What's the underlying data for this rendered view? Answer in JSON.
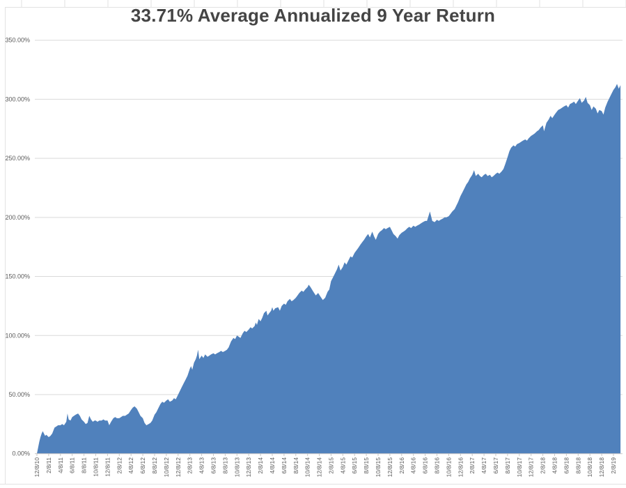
{
  "title": "33.71% Average Annualized 9 Year Return",
  "colors": {
    "area_fill": "#5081BC",
    "gridline": "#D9D9D9",
    "axis_line": "#C6C6C6",
    "tick": "#C6C6C6",
    "sheet_line": "#E2E2E2",
    "axis_text": "#595959",
    "title_text": "#454545",
    "background": "#FFFFFF"
  },
  "chart_data": {
    "type": "area",
    "title": "33.71% Average Annualized 9 Year Return",
    "xlabel": "",
    "ylabel": "",
    "ylim": [
      0,
      350
    ],
    "grid": "horizontal",
    "legend": "none",
    "y_ticks": [
      {
        "value": 0,
        "label": "0.00%"
      },
      {
        "value": 50,
        "label": "50.00%"
      },
      {
        "value": 100,
        "label": "100.00%"
      },
      {
        "value": 150,
        "label": "150.00%"
      },
      {
        "value": 200,
        "label": "200.00%"
      },
      {
        "value": 250,
        "label": "250.00%"
      },
      {
        "value": 300,
        "label": "300.00%"
      },
      {
        "value": 350,
        "label": "350.00%"
      }
    ],
    "x_labels": [
      "12/8/10",
      "2/8/11",
      "4/8/11",
      "6/8/11",
      "8/8/11",
      "10/8/11",
      "12/8/11",
      "2/8/12",
      "4/8/12",
      "6/8/12",
      "8/8/12",
      "10/8/12",
      "12/8/12",
      "2/8/13",
      "4/8/13",
      "6/8/13",
      "8/8/13",
      "10/8/13",
      "12/8/13",
      "2/8/14",
      "4/8/14",
      "6/8/14",
      "8/8/14",
      "10/8/14",
      "12/8/14",
      "2/8/15",
      "4/8/15",
      "6/8/15",
      "8/8/15",
      "10/8/15",
      "12/8/15",
      "2/8/16",
      "4/8/16",
      "6/8/16",
      "8/8/16",
      "10/8/16",
      "12/8/16",
      "2/8/17",
      "4/8/17",
      "6/8/17",
      "8/8/17",
      "10/8/17",
      "12/8/17",
      "2/8/18",
      "4/8/18",
      "6/8/18",
      "8/8/18",
      "10/8/18",
      "12/8/18",
      "2/8/19"
    ],
    "x_label_interval_months": 2,
    "series_note": "cumulative return % vs months since 12/8/10 (values estimated from pixels)",
    "points": [
      [
        0,
        0
      ],
      [
        0.2,
        5
      ],
      [
        0.4,
        10
      ],
      [
        0.6,
        14
      ],
      [
        0.8,
        17
      ],
      [
        1,
        19
      ],
      [
        1.2,
        17
      ],
      [
        1.4,
        15
      ],
      [
        1.6,
        16
      ],
      [
        1.8,
        15
      ],
      [
        2,
        14
      ],
      [
        2.3,
        15
      ],
      [
        2.6,
        17
      ],
      [
        3,
        22
      ],
      [
        3.3,
        23
      ],
      [
        3.6,
        24
      ],
      [
        4,
        24
      ],
      [
        4.3,
        25
      ],
      [
        4.6,
        24
      ],
      [
        5,
        27
      ],
      [
        5.2,
        34
      ],
      [
        5.4,
        29
      ],
      [
        5.7,
        28
      ],
      [
        6,
        31
      ],
      [
        6.3,
        32
      ],
      [
        6.6,
        33
      ],
      [
        7,
        34
      ],
      [
        7.3,
        32
      ],
      [
        7.6,
        29
      ],
      [
        8,
        27
      ],
      [
        8.3,
        25
      ],
      [
        8.6,
        26
      ],
      [
        8.9,
        32
      ],
      [
        9.2,
        29
      ],
      [
        9.5,
        27
      ],
      [
        9.8,
        28
      ],
      [
        10,
        28
      ],
      [
        10.3,
        27
      ],
      [
        10.6,
        28
      ],
      [
        11,
        28
      ],
      [
        11.3,
        29
      ],
      [
        11.6,
        28
      ],
      [
        12,
        28
      ],
      [
        12.3,
        24
      ],
      [
        12.6,
        27
      ],
      [
        13,
        30
      ],
      [
        13.3,
        31
      ],
      [
        13.6,
        30
      ],
      [
        14,
        30
      ],
      [
        14.3,
        31
      ],
      [
        14.6,
        32
      ],
      [
        15,
        32
      ],
      [
        15.3,
        33
      ],
      [
        15.6,
        34
      ],
      [
        16,
        37
      ],
      [
        16.3,
        39
      ],
      [
        16.6,
        40
      ],
      [
        17,
        38
      ],
      [
        17.3,
        35
      ],
      [
        17.6,
        32
      ],
      [
        18,
        30
      ],
      [
        18.3,
        26
      ],
      [
        18.6,
        24
      ],
      [
        19,
        25
      ],
      [
        19.3,
        26
      ],
      [
        19.6,
        28
      ],
      [
        20,
        33
      ],
      [
        20.3,
        35
      ],
      [
        20.6,
        38
      ],
      [
        21,
        42
      ],
      [
        21.3,
        44
      ],
      [
        21.6,
        43
      ],
      [
        22,
        45
      ],
      [
        22.3,
        46
      ],
      [
        22.6,
        44
      ],
      [
        23,
        45
      ],
      [
        23.3,
        47
      ],
      [
        23.6,
        46
      ],
      [
        24,
        50
      ],
      [
        24.3,
        53
      ],
      [
        24.6,
        56
      ],
      [
        25,
        60
      ],
      [
        25.3,
        63
      ],
      [
        25.6,
        66
      ],
      [
        26,
        72
      ],
      [
        26.2,
        74
      ],
      [
        26.4,
        71
      ],
      [
        26.7,
        77
      ],
      [
        27,
        80
      ],
      [
        27.2,
        83
      ],
      [
        27.4,
        88
      ],
      [
        27.6,
        80
      ],
      [
        28,
        83
      ],
      [
        28.3,
        81
      ],
      [
        28.6,
        84
      ],
      [
        29,
        82
      ],
      [
        29.3,
        83
      ],
      [
        29.6,
        84
      ],
      [
        30,
        85
      ],
      [
        30.3,
        84
      ],
      [
        30.6,
        85
      ],
      [
        31,
        86
      ],
      [
        31.3,
        87
      ],
      [
        31.6,
        86
      ],
      [
        32,
        87
      ],
      [
        32.3,
        88
      ],
      [
        32.6,
        90
      ],
      [
        33,
        95
      ],
      [
        33.4,
        98
      ],
      [
        33.7,
        97
      ],
      [
        34,
        100
      ],
      [
        34.3,
        99
      ],
      [
        34.6,
        98
      ],
      [
        35,
        102
      ],
      [
        35.3,
        104
      ],
      [
        35.6,
        103
      ],
      [
        36,
        105
      ],
      [
        36.3,
        107
      ],
      [
        36.6,
        106
      ],
      [
        37,
        108
      ],
      [
        37.2,
        111
      ],
      [
        37.4,
        109
      ],
      [
        37.7,
        114
      ],
      [
        38,
        112
      ],
      [
        38.3,
        115
      ],
      [
        38.6,
        119
      ],
      [
        39,
        121
      ],
      [
        39.2,
        117
      ],
      [
        39.5,
        119
      ],
      [
        39.8,
        121
      ],
      [
        40,
        124
      ],
      [
        40.2,
        121
      ],
      [
        40.5,
        123
      ],
      [
        41,
        124
      ],
      [
        41.3,
        121
      ],
      [
        41.6,
        125
      ],
      [
        42,
        127
      ],
      [
        42.3,
        126
      ],
      [
        42.6,
        129
      ],
      [
        43,
        131
      ],
      [
        43.3,
        129
      ],
      [
        43.6,
        130
      ],
      [
        44,
        132
      ],
      [
        44.3,
        134
      ],
      [
        44.6,
        136
      ],
      [
        45,
        138
      ],
      [
        45.3,
        137
      ],
      [
        45.6,
        139
      ],
      [
        46,
        141
      ],
      [
        46.2,
        143
      ],
      [
        46.5,
        141
      ],
      [
        47,
        137
      ],
      [
        47.4,
        134
      ],
      [
        47.8,
        136
      ],
      [
        48.2,
        133
      ],
      [
        48.6,
        130
      ],
      [
        49,
        132
      ],
      [
        49.4,
        137
      ],
      [
        49.7,
        139
      ],
      [
        50,
        146
      ],
      [
        50.3,
        149
      ],
      [
        50.6,
        152
      ],
      [
        51,
        156
      ],
      [
        51.3,
        160
      ],
      [
        51.6,
        155
      ],
      [
        52,
        158
      ],
      [
        52.3,
        162
      ],
      [
        52.6,
        160
      ],
      [
        53,
        164
      ],
      [
        53.3,
        167
      ],
      [
        53.6,
        166
      ],
      [
        54,
        170
      ],
      [
        54.3,
        172
      ],
      [
        54.6,
        174
      ],
      [
        55,
        177
      ],
      [
        55.3,
        179
      ],
      [
        55.6,
        181
      ],
      [
        56,
        184
      ],
      [
        56.3,
        186
      ],
      [
        56.6,
        183
      ],
      [
        57,
        188
      ],
      [
        57.3,
        184
      ],
      [
        57.6,
        181
      ],
      [
        58,
        186
      ],
      [
        58.3,
        188
      ],
      [
        58.6,
        189
      ],
      [
        59,
        191
      ],
      [
        59.3,
        190
      ],
      [
        59.6,
        191
      ],
      [
        60,
        192
      ],
      [
        60.3,
        189
      ],
      [
        60.6,
        186
      ],
      [
        61,
        184
      ],
      [
        61.3,
        182
      ],
      [
        61.6,
        185
      ],
      [
        62,
        187
      ],
      [
        62.3,
        188
      ],
      [
        62.6,
        189
      ],
      [
        63,
        191
      ],
      [
        63.3,
        192
      ],
      [
        63.6,
        191
      ],
      [
        64,
        193
      ],
      [
        64.3,
        192
      ],
      [
        64.6,
        193
      ],
      [
        65,
        194
      ],
      [
        65.3,
        195
      ],
      [
        65.6,
        196
      ],
      [
        66,
        197
      ],
      [
        66.3,
        197
      ],
      [
        66.8,
        205
      ],
      [
        67.2,
        197
      ],
      [
        67.6,
        196
      ],
      [
        68,
        198
      ],
      [
        68.3,
        197
      ],
      [
        68.6,
        198
      ],
      [
        69,
        199
      ],
      [
        69.3,
        200
      ],
      [
        69.6,
        200
      ],
      [
        70,
        201
      ],
      [
        70.3,
        203
      ],
      [
        70.6,
        205
      ],
      [
        71,
        207
      ],
      [
        71.3,
        210
      ],
      [
        71.6,
        213
      ],
      [
        72,
        218
      ],
      [
        72.3,
        221
      ],
      [
        72.6,
        224
      ],
      [
        73,
        228
      ],
      [
        73.3,
        230
      ],
      [
        73.6,
        233
      ],
      [
        74,
        236
      ],
      [
        74.3,
        240
      ],
      [
        74.6,
        235
      ],
      [
        75,
        237
      ],
      [
        75.3,
        235
      ],
      [
        75.6,
        234
      ],
      [
        76,
        236
      ],
      [
        76.3,
        237
      ],
      [
        76.6,
        235
      ],
      [
        77,
        236
      ],
      [
        77.3,
        234
      ],
      [
        77.6,
        235
      ],
      [
        78,
        237
      ],
      [
        78.3,
        238
      ],
      [
        78.6,
        237
      ],
      [
        79,
        239
      ],
      [
        79.3,
        241
      ],
      [
        79.6,
        245
      ],
      [
        80,
        251
      ],
      [
        80.3,
        256
      ],
      [
        80.6,
        259
      ],
      [
        81,
        261
      ],
      [
        81.3,
        260
      ],
      [
        81.6,
        262
      ],
      [
        82,
        263
      ],
      [
        82.3,
        264
      ],
      [
        82.6,
        265
      ],
      [
        83,
        266
      ],
      [
        83.3,
        265
      ],
      [
        83.6,
        267
      ],
      [
        84,
        269
      ],
      [
        84.3,
        270
      ],
      [
        84.6,
        271
      ],
      [
        85,
        273
      ],
      [
        85.3,
        274
      ],
      [
        85.6,
        276
      ],
      [
        86,
        278
      ],
      [
        86.2,
        273
      ],
      [
        86.6,
        280
      ],
      [
        87,
        283
      ],
      [
        87.3,
        286
      ],
      [
        87.6,
        284
      ],
      [
        88,
        287
      ],
      [
        88.3,
        289
      ],
      [
        88.6,
        291
      ],
      [
        89,
        292
      ],
      [
        89.3,
        293
      ],
      [
        89.6,
        294
      ],
      [
        90,
        295
      ],
      [
        90.3,
        293
      ],
      [
        90.6,
        296
      ],
      [
        91,
        297
      ],
      [
        91.3,
        298
      ],
      [
        91.6,
        296
      ],
      [
        92,
        299
      ],
      [
        92.3,
        301
      ],
      [
        92.6,
        297
      ],
      [
        93,
        299
      ],
      [
        93.3,
        302
      ],
      [
        93.6,
        297
      ],
      [
        94,
        295
      ],
      [
        94.3,
        291
      ],
      [
        94.6,
        294
      ],
      [
        95,
        292
      ],
      [
        95.3,
        288
      ],
      [
        95.6,
        291
      ],
      [
        96,
        290
      ],
      [
        96.3,
        287
      ],
      [
        96.6,
        293
      ],
      [
        97,
        298
      ],
      [
        97.3,
        301
      ],
      [
        97.6,
        304
      ],
      [
        98,
        308
      ],
      [
        98.3,
        310
      ],
      [
        98.6,
        313
      ],
      [
        98.9,
        309
      ],
      [
        99.2,
        312
      ]
    ]
  }
}
